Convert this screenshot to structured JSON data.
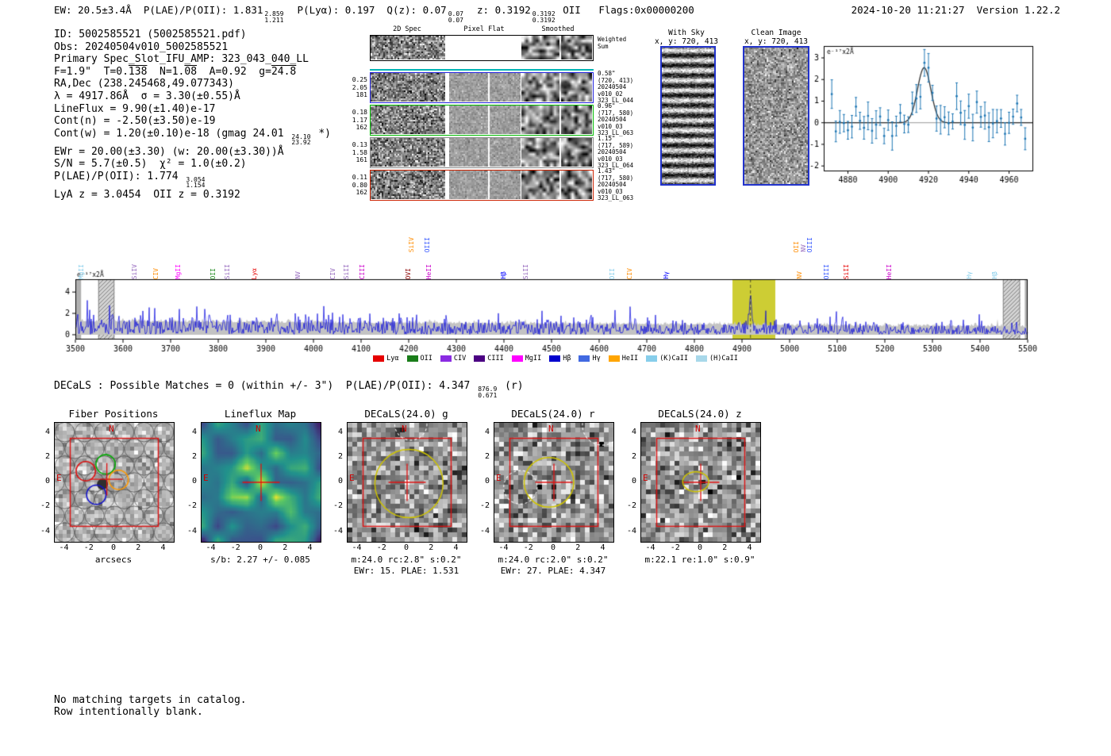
{
  "header": {
    "seg1": "EW: 20.5±3.4Å  P(LAE)/P(OII): 1.831",
    "f1hi": "2.859",
    "f1lo": "1.211",
    "seg2": "  P(Lyα): 0.197  Q(z): 0.07",
    "f2hi": "0.07",
    "f2lo": "0.07",
    "seg3": "  z: 0.3192",
    "f3hi": "0.3192",
    "f3lo": "0.3192",
    "seg4": " OII   Flags:0x00000200",
    "datetime": "2024-10-20 11:21:27  Version 1.22.2"
  },
  "info": {
    "l1": "ID: 5002585521 (5002585521.pdf)",
    "l2": "Obs: 20240504v010_5002585521",
    "l3": "Primary Spec_Slot_IFU_AMP: 323_043_040_LL",
    "l4a": "F=1.9\"  T=0.",
    "l4b": "138",
    "l4c": "  N=1.",
    "l4d": "08",
    "l4e": "  A=0.92  g=",
    "l4f": "24.8",
    "l5": "RA,Dec (238.245468,49.077343)",
    "l6": "λ = 4917.86Å  σ = 3.30(±0.55)Å",
    "l7": "LineFlux = 9.90(±1.40)e-17",
    "l8": "Cont(n) = -2.50(±3.50)e-19",
    "l9a": "Cont(w) = 1.20(±0.10)e-18 (gmag 24.01 ",
    "l9hi": "24.10",
    "l9lo": "23.92",
    "l9b": " *)",
    "l10": "EWr = 20.00(±3.30) (w: 20.00(±3.30))Å",
    "l11": "S/N = 5.7(±0.5)  χ² = 1.0(±0.2)",
    "l12a": "P(LAE)/P(OII): 1.774 ",
    "l12hi": "3.054",
    "l12lo": "1.154",
    "l13": "LyA z = 3.0454  OII z = 0.3192"
  },
  "spec2d": {
    "col_titles": [
      "2D Spec",
      "Pixel Flat",
      "Smoothed"
    ],
    "weighted_label": "Weighted Sum",
    "rows": [
      {
        "left": [
          "0.25",
          "2.05",
          "181"
        ],
        "right": [
          "0.58\"",
          "(720, 413)",
          "20240504",
          "v010_02",
          "323_LL_044"
        ],
        "color": "#2222dd"
      },
      {
        "left": [
          "0.18",
          "1.17",
          "162"
        ],
        "right": [
          "0.96\"",
          "(717, 580)",
          "20240504",
          "v010_03",
          "323_LL_063"
        ],
        "color": "#00bb00"
      },
      {
        "left": [
          "0.13",
          "1.58",
          "161"
        ],
        "right": [
          "1.15\"",
          "(717, 589)",
          "20240504",
          "v010_03",
          "323_LL_064"
        ],
        "color": "#888888"
      },
      {
        "left": [
          "0.11",
          "0.80",
          "162"
        ],
        "right": [
          "1.43\"",
          "(717, 580)",
          "20240504",
          "v010_03",
          "323_LL_063"
        ],
        "color": "#cc2200"
      }
    ]
  },
  "sky_panels": {
    "with_sky": {
      "title": "With Sky",
      "coords": "x, y: 720, 413"
    },
    "clean": {
      "title": "Clean Image",
      "coords": "x, y: 720, 413"
    }
  },
  "chart_data": [
    {
      "id": "line_fit_inset",
      "type": "scatter",
      "ylabel": "e⁻¹⁷x2Å",
      "xlim": [
        4868,
        4972
      ],
      "ylim": [
        -2.25,
        3.55
      ],
      "xticks": [
        4880,
        4900,
        4920,
        4940,
        4960
      ],
      "yticks": [
        -2,
        -1,
        0,
        1,
        2,
        3
      ],
      "fit": {
        "type": "gaussian",
        "center": 4917.86,
        "sigma": 3.3,
        "amplitude": 2.55,
        "color": "#333333"
      },
      "points_color": "#1f77b4",
      "noise_sigma": 0.48,
      "point_step": 2,
      "grid": false
    },
    {
      "id": "full_spectrum",
      "type": "line",
      "ylabel": "e⁻¹⁷x2Å",
      "xlim": [
        3500,
        5500
      ],
      "ylim": [
        -0.45,
        5.2
      ],
      "xticks": [
        3500,
        3600,
        3700,
        3800,
        3900,
        4000,
        4100,
        4200,
        4300,
        4400,
        4500,
        4600,
        4700,
        4800,
        4900,
        5000,
        5100,
        5200,
        5300,
        5400,
        5500
      ],
      "yticks": [
        0,
        2,
        4
      ],
      "line_color": "#0000dd",
      "error_band_color": "#c3c3c3",
      "emission": {
        "center": 4917.86,
        "sigma": 3.3,
        "amplitude": 2.7
      },
      "highlight_band": {
        "x0": 4880,
        "x1": 4970,
        "color": "#c8c81e",
        "dashed_line_x": 4917.86
      },
      "hatched_bands": [
        [
          3548,
          3582
        ],
        [
          5448,
          5484
        ]
      ],
      "edge_bands": [
        [
          3500,
          3512
        ],
        [
          5494,
          5500
        ]
      ],
      "grid": false,
      "line_labels": [
        {
          "label": "MgII",
          "wl": 3514,
          "color": "#87ceeb",
          "tier": 0
        },
        {
          "label": "SiIV",
          "wl": 3625,
          "color": "#9467bd",
          "tier": 0
        },
        {
          "label": "CIV",
          "wl": 3670,
          "color": "#ff8c00",
          "tier": 0
        },
        {
          "label": "MgII",
          "wl": 3716,
          "color": "#ff00ff",
          "tier": 0
        },
        {
          "label": "OII",
          "wl": 3790,
          "color": "#228b22",
          "tier": 0
        },
        {
          "label": "SiII",
          "wl": 3820,
          "color": "#9467bd",
          "tier": 0
        },
        {
          "label": "Lyα",
          "wl": 3877,
          "color": "#e60000",
          "tier": 0
        },
        {
          "label": "NV",
          "wl": 3968,
          "color": "#9467bd",
          "tier": 0
        },
        {
          "label": "CIV",
          "wl": 4042,
          "color": "#9467bd",
          "tier": 0
        },
        {
          "label": "SiII",
          "wl": 4070,
          "color": "#9467bd",
          "tier": 0
        },
        {
          "label": "CIII",
          "wl": 4104,
          "color": "#cc00cc",
          "tier": 0
        },
        {
          "label": "OVI",
          "wl": 4200,
          "color": "#8b0000",
          "tier": 0
        },
        {
          "label": "SiIV",
          "wl": 4206,
          "color": "#ff8c00",
          "tier": 1
        },
        {
          "label": "OIII",
          "wl": 4240,
          "color": "#3355ff",
          "tier": 1
        },
        {
          "label": "HeII",
          "wl": 4243,
          "color": "#cc00cc",
          "tier": 0
        },
        {
          "label": "Hβ",
          "wl": 4400,
          "color": "#0000ff",
          "tier": 0
        },
        {
          "label": "SiII",
          "wl": 4447,
          "color": "#9467bd",
          "tier": 0
        },
        {
          "label": "OII",
          "wl": 4628,
          "color": "#87ceeb",
          "tier": 0
        },
        {
          "label": "CIV",
          "wl": 4665,
          "color": "#ff8c00",
          "tier": 0
        },
        {
          "label": "Hγ",
          "wl": 4742,
          "color": "#0000ff",
          "tier": 0
        },
        {
          "label": "OII",
          "wl": 5015,
          "color": "#ff8c00",
          "tier": 1
        },
        {
          "label": "NV",
          "wl": 5030,
          "color": "#9467bd",
          "tier": 1
        },
        {
          "label": "OIII",
          "wl": 5044,
          "color": "#3355ff",
          "tier": 1
        },
        {
          "label": "NV",
          "wl": 5022,
          "color": "#ff8c00",
          "tier": 0
        },
        {
          "label": "OIII",
          "wl": 5078,
          "color": "#3355ff",
          "tier": 0
        },
        {
          "label": "SiII",
          "wl": 5120,
          "color": "#e60000",
          "tier": 0
        },
        {
          "label": "HeII",
          "wl": 5210,
          "color": "#cc00cc",
          "tier": 0
        },
        {
          "label": "Hγ",
          "wl": 5378,
          "color": "#87ceeb",
          "tier": 0
        },
        {
          "label": "Hβ",
          "wl": 5432,
          "color": "#87ceeb",
          "tier": 0
        }
      ],
      "legend": [
        {
          "label": "Lyα",
          "color": "#e60000"
        },
        {
          "label": "OII",
          "color": "#1a7d1a"
        },
        {
          "label": "CIV",
          "color": "#8a2be2"
        },
        {
          "label": "CIII",
          "color": "#4b0082"
        },
        {
          "label": "MgII",
          "color": "#ff00ff"
        },
        {
          "label": "Hβ",
          "color": "#0000cd"
        },
        {
          "label": "Hγ",
          "color": "#4169e1"
        },
        {
          "label": "HeII",
          "color": "#ffa500"
        },
        {
          "label": "(K)CaII",
          "color": "#87ceeb"
        },
        {
          "label": "(H)CaII",
          "color": "#a8d8ea"
        }
      ]
    }
  ],
  "matches_line": {
    "pre": "DECaLS : Possible Matches = 0 (within +/- 3\")  P(LAE)/P(OII): 4.347 ",
    "hi": "876.9",
    "lo": "0.671",
    "post": " (r)"
  },
  "cutouts": {
    "axis_ticks": [
      -4,
      -2,
      0,
      2,
      4
    ],
    "compass": {
      "n": "N",
      "e": "E"
    },
    "panels": [
      {
        "kind": "fiber",
        "title": "Fiber Positions",
        "xlabel": "arcsecs",
        "caption1": "",
        "caption2": ""
      },
      {
        "kind": "lineflux",
        "title": "Lineflux Map",
        "xlabel": "",
        "caption1": "s/b: 2.27 +/- 0.085",
        "caption2": ""
      },
      {
        "kind": "decals",
        "title": "DECaLS(24.0) g",
        "xlabel": "",
        "caption1": "m:24.0 rc:2.8\" s:0.2\"",
        "caption2": "EWr: 15. PLAE: 1.531",
        "aperture_r": 2.8
      },
      {
        "kind": "decals",
        "title": "DECaLS(24.0) r",
        "xlabel": "",
        "caption1": "m:24.0 rc:2.0\" s:0.2\"",
        "caption2": "EWr: 27. PLAE: 4.347",
        "aperture_r": 2.0
      },
      {
        "kind": "decals",
        "title": "DECaLS(24.0) z",
        "xlabel": "",
        "caption1": "m:22.1 re:1.0\" s:0.9\"",
        "caption2": "",
        "aperture_r": 1.0
      }
    ]
  },
  "footer": {
    "line1": "No matching targets in catalog.",
    "line2": "Row intentionally blank."
  }
}
